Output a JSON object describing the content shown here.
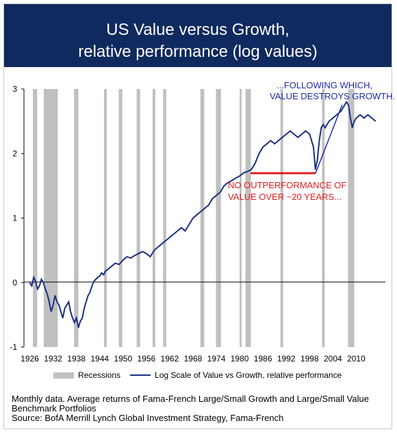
{
  "header": {
    "title": "US Value versus Growth,",
    "subtitle": "relative performance (log values)"
  },
  "notes": {
    "line1": "Monthly data. Average returns of Fama-French Large/Small Growth and Large/Small Value Benchmark Portfolios",
    "line2": "Source: BofA Merrill Lynch Global Investment Strategy,  Fama-French"
  },
  "annotations": {
    "top_line1": "...FOLLOWING WHICH,",
    "top_line2": "VALUE DESTROYS GROWTH.",
    "mid_line1": "NO OUTPERFORMANCE OF",
    "mid_line2": "VALUE OVER ~20 YEARS..."
  },
  "legend": {
    "recessions": "Recessions",
    "series": "Log Scale of Value vs Growth, relative performance"
  },
  "colors": {
    "header_bg": "#0f2a5e",
    "series": "#1a2f80",
    "recession": "#c0c0c0",
    "highlight_red": "#e01e1e",
    "annotation_blue": "#1f2aa8"
  },
  "chart_data": {
    "type": "line",
    "title": "US Value versus Growth, relative performance (log values)",
    "xlabel": "",
    "ylabel": "",
    "xlim": [
      1926,
      2016
    ],
    "ylim": [
      -1,
      3
    ],
    "x_ticks": [
      1926,
      1932,
      1938,
      1944,
      1950,
      1956,
      1962,
      1968,
      1974,
      1980,
      1986,
      1992,
      1998,
      2004,
      2010
    ],
    "y_ticks": [
      -1,
      0,
      1,
      2,
      3
    ],
    "grid": false,
    "legend_position": "bottom",
    "recessions": [
      [
        1926.8,
        1927.9
      ],
      [
        1929.6,
        1933.2
      ],
      [
        1937.4,
        1938.5
      ],
      [
        1945.1,
        1945.8
      ],
      [
        1948.9,
        1949.8
      ],
      [
        1953.5,
        1954.4
      ],
      [
        1957.6,
        1958.3
      ],
      [
        1960.3,
        1961.1
      ],
      [
        1969.9,
        1970.9
      ],
      [
        1973.9,
        1975.2
      ],
      [
        1980.0,
        1980.5
      ],
      [
        1981.5,
        1982.9
      ],
      [
        1990.5,
        1991.2
      ],
      [
        2001.2,
        2001.9
      ],
      [
        2007.9,
        2009.5
      ]
    ],
    "series": [
      {
        "name": "Log Scale of Value vs Growth, relative performance",
        "x": [
          1926,
          1926.5,
          1927,
          1927.5,
          1928,
          1928.5,
          1929,
          1929.5,
          1930,
          1930.5,
          1931,
          1931.5,
          1932,
          1932.5,
          1933,
          1933.5,
          1934,
          1934.5,
          1935,
          1935.5,
          1936,
          1936.5,
          1937,
          1937.5,
          1938,
          1938.5,
          1939,
          1939.5,
          1940,
          1940.5,
          1941,
          1941.5,
          1942,
          1942.5,
          1943,
          1943.5,
          1944,
          1944.5,
          1945,
          1945.5,
          1946,
          1947,
          1948,
          1949,
          1950,
          1951,
          1952,
          1953,
          1954,
          1955,
          1956,
          1957,
          1958,
          1959,
          1960,
          1961,
          1962,
          1963,
          1964,
          1965,
          1966,
          1967,
          1968,
          1969,
          1970,
          1971,
          1972,
          1973,
          1974,
          1975,
          1976,
          1977,
          1978,
          1979,
          1980,
          1981,
          1982,
          1983,
          1984,
          1985,
          1986,
          1987,
          1988,
          1989,
          1990,
          1991,
          1992,
          1993,
          1994,
          1995,
          1996,
          1997,
          1998,
          1999,
          1999.5,
          2000,
          2000.5,
          2001,
          2001.5,
          2002,
          2003,
          2004,
          2005,
          2006,
          2007,
          2007.5,
          2008,
          2008.5,
          2009,
          2009.5,
          2010,
          2011,
          2012,
          2013,
          2014,
          2015
        ],
        "values": [
          0.0,
          -0.05,
          0.08,
          0.02,
          -0.1,
          -0.05,
          0.05,
          0.0,
          -0.1,
          -0.18,
          -0.3,
          -0.45,
          -0.35,
          -0.2,
          -0.3,
          -0.35,
          -0.45,
          -0.55,
          -0.4,
          -0.35,
          -0.3,
          -0.45,
          -0.55,
          -0.62,
          -0.55,
          -0.7,
          -0.6,
          -0.55,
          -0.4,
          -0.3,
          -0.2,
          -0.15,
          -0.05,
          0.02,
          0.05,
          0.08,
          0.1,
          0.15,
          0.12,
          0.18,
          0.2,
          0.25,
          0.3,
          0.28,
          0.35,
          0.4,
          0.38,
          0.42,
          0.45,
          0.48,
          0.45,
          0.4,
          0.5,
          0.55,
          0.6,
          0.65,
          0.7,
          0.75,
          0.8,
          0.85,
          0.8,
          0.9,
          1.0,
          1.05,
          1.1,
          1.15,
          1.2,
          1.3,
          1.35,
          1.4,
          1.5,
          1.55,
          1.58,
          1.62,
          1.65,
          1.7,
          1.72,
          1.75,
          1.85,
          2.0,
          2.1,
          2.15,
          2.2,
          2.15,
          2.2,
          2.25,
          2.3,
          2.35,
          2.3,
          2.25,
          2.3,
          2.35,
          2.3,
          2.1,
          1.75,
          1.9,
          2.2,
          2.4,
          2.45,
          2.4,
          2.5,
          2.55,
          2.6,
          2.65,
          2.75,
          2.8,
          2.75,
          2.55,
          2.4,
          2.5,
          2.55,
          2.6,
          2.55,
          2.6,
          2.55,
          2.5
        ]
      }
    ]
  }
}
